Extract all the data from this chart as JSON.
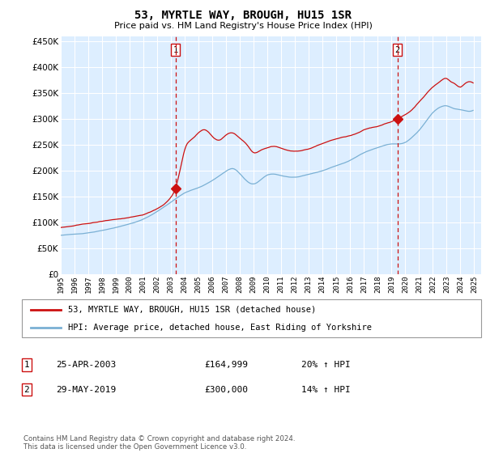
{
  "title": "53, MYRTLE WAY, BROUGH, HU15 1SR",
  "subtitle": "Price paid vs. HM Land Registry's House Price Index (HPI)",
  "ylabel_values": [
    0,
    50000,
    100000,
    150000,
    200000,
    250000,
    300000,
    350000,
    400000,
    450000
  ],
  "ylim": [
    0,
    460000
  ],
  "xlim_start": 1995.0,
  "xlim_end": 2025.5,
  "background_color": "#ddeeff",
  "grid_color": "#ffffff",
  "hpi_color": "#7ab0d4",
  "price_color": "#cc1111",
  "vline_color": "#cc1111",
  "marker1_x": 2003.32,
  "marker2_x": 2019.42,
  "marker1_y": 164999,
  "marker2_y": 300000,
  "legend_line1": "53, MYRTLE WAY, BROUGH, HU15 1SR (detached house)",
  "legend_line2": "HPI: Average price, detached house, East Riding of Yorkshire",
  "annot1_date": "25-APR-2003",
  "annot1_price": "£164,999",
  "annot1_hpi": "20% ↑ HPI",
  "annot2_date": "29-MAY-2019",
  "annot2_price": "£300,000",
  "annot2_hpi": "14% ↑ HPI",
  "footer": "Contains HM Land Registry data © Crown copyright and database right 2024.\nThis data is licensed under the Open Government Licence v3.0."
}
